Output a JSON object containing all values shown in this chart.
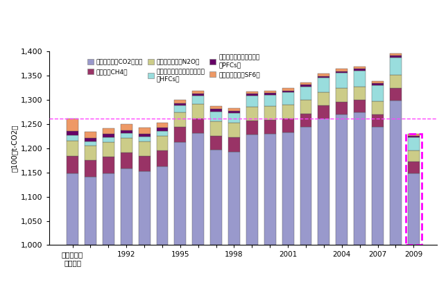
{
  "CO2": [
    1148,
    1141,
    1148,
    1158,
    1152,
    1163,
    1213,
    1231,
    1197,
    1193,
    1228,
    1230,
    1233,
    1244,
    1261,
    1270,
    1274,
    1244,
    1299,
    1148
  ],
  "CH4": [
    36,
    34,
    34,
    33,
    32,
    32,
    31,
    30,
    29,
    29,
    29,
    28,
    28,
    27,
    27,
    26,
    26,
    26,
    25,
    24
  ],
  "N2O": [
    32,
    31,
    31,
    30,
    30,
    30,
    30,
    30,
    30,
    30,
    29,
    29,
    29,
    29,
    28,
    28,
    27,
    27,
    27,
    24
  ],
  "HFCs": [
    11,
    8,
    9,
    10,
    10,
    11,
    14,
    17,
    20,
    21,
    22,
    23,
    25,
    27,
    29,
    31,
    33,
    33,
    36,
    26
  ],
  "PFCs": [
    8,
    7,
    7,
    6,
    6,
    6,
    5,
    5,
    5,
    4,
    4,
    4,
    4,
    4,
    4,
    4,
    4,
    4,
    4,
    3
  ],
  "SF6": [
    26,
    13,
    12,
    12,
    12,
    10,
    7,
    6,
    6,
    5,
    5,
    5,
    5,
    5,
    5,
    5,
    5,
    5,
    5,
    4
  ],
  "colors": {
    "CO2": "#9999cc",
    "CH4": "#993366",
    "N2O": "#cccc88",
    "HFCs": "#99dddd",
    "PFCs": "#660066",
    "SF6": "#ee9966"
  },
  "reference_line": 1261,
  "ylim": [
    1000,
    1400
  ],
  "yticks": [
    1000,
    1050,
    1100,
    1150,
    1200,
    1250,
    1300,
    1350,
    1400
  ],
  "ylabel": "（100万t-CO2）",
  "legend_row1": [
    {
      "key": "CO2",
      "label": "二酸化炭素（CO2）排出"
    },
    {
      "key": "CH4",
      "label": "メタン（CH4）"
    },
    {
      "key": "N2O",
      "label": "一酸化二窒素（N2O）"
    }
  ],
  "legend_row2": [
    {
      "key": "HFCs",
      "label": "ハイドロフルオロカーボン類\n（HFCs）"
    },
    {
      "key": "PFCs",
      "label": "パーフルオロカーボン類\n（PFCs）"
    },
    {
      "key": "SF6",
      "label": "六ふっ化硫黄（SF6）"
    }
  ],
  "visible_xlabels": {
    "0": "京都議定書\nの基準年",
    "3": "1992",
    "6": "1995",
    "9": "1998",
    "12": "2001",
    "15": "2004",
    "17": "2007",
    "19": "2009"
  }
}
